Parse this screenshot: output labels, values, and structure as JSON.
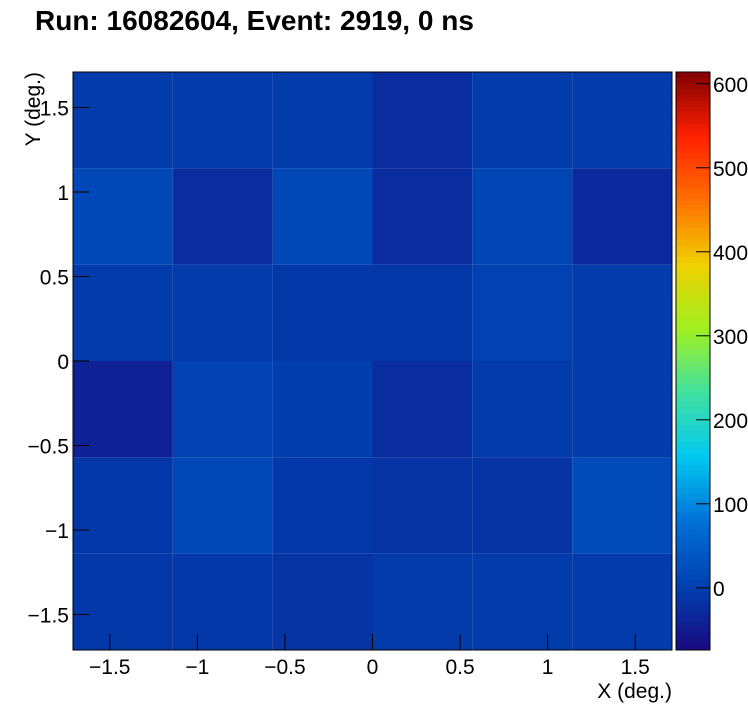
{
  "chart_data": {
    "type": "heatmap",
    "title": "Run: 16082604, Event: 2919, 0 ns",
    "x_label": "X (deg.)",
    "y_label": "Y (deg.)",
    "xbins": [
      -1.71,
      -1.14,
      -0.57,
      0,
      0.57,
      1.14,
      1.71
    ],
    "ybins": [
      -1.71,
      -1.14,
      -0.57,
      0,
      0.57,
      1.14,
      1.71
    ],
    "values": [
      [
        -10,
        -10,
        -15,
        -5,
        -5,
        -5
      ],
      [
        -10,
        15,
        -10,
        -15,
        -15,
        20
      ],
      [
        -40,
        5,
        0,
        -25,
        -5,
        -5
      ],
      [
        -5,
        -5,
        -10,
        -10,
        5,
        -5
      ],
      [
        15,
        -25,
        15,
        -25,
        10,
        -30
      ],
      [
        -5,
        -5,
        -5,
        -25,
        -5,
        -5
      ]
    ],
    "xlim": [
      -1.71,
      1.71
    ],
    "ylim": [
      -1.71,
      1.71
    ],
    "xticks": [
      {
        "value": -1.5,
        "label": "−1.5"
      },
      {
        "value": -1,
        "label": "−1"
      },
      {
        "value": -0.5,
        "label": "−0.5"
      },
      0,
      0.5,
      1,
      1.5
    ],
    "yticks": [
      {
        "value": -1.5,
        "label": "−1.5"
      },
      {
        "value": -1,
        "label": "−1"
      },
      {
        "value": -0.5,
        "label": "−0.5"
      },
      0,
      0.5,
      1,
      1.5
    ],
    "zlim": [
      -74,
      614
    ],
    "zticks": [
      0,
      100,
      200,
      300,
      400,
      500,
      600
    ],
    "colorscale": [
      "#1a0a80",
      "#0040b0",
      "#0070d8",
      "#00c8f0",
      "#40e0a0",
      "#a0f020",
      "#f0d000",
      "#ff7000",
      "#ff2000",
      "#800000"
    ]
  }
}
